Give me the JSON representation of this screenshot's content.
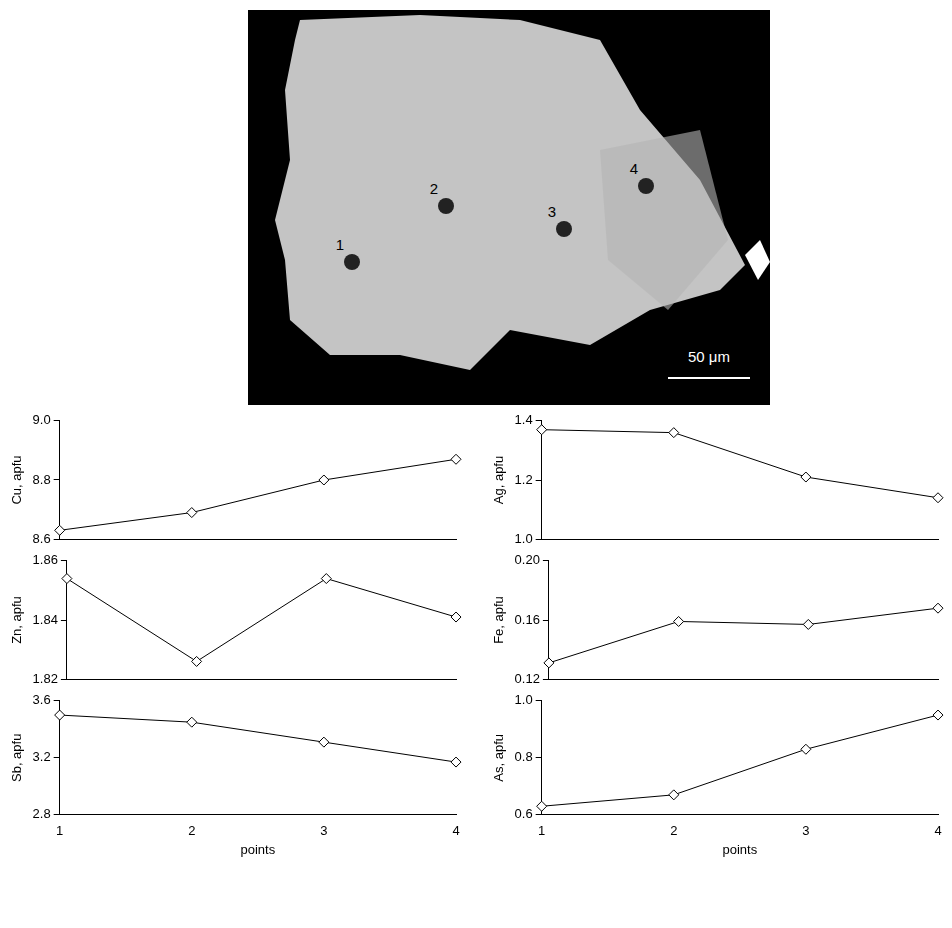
{
  "image": {
    "points": [
      "1",
      "2",
      "3",
      "4"
    ],
    "scale_bar": "50 μm"
  },
  "chart_data": [
    {
      "type": "line",
      "y_label": "Cu, apfu",
      "x": [
        1,
        2,
        3,
        4
      ],
      "values": [
        8.63,
        8.69,
        8.8,
        8.87
      ],
      "xlim": [
        1,
        4
      ],
      "xticks": [
        1,
        2,
        3,
        4
      ],
      "ylim": [
        8.6,
        9.0
      ],
      "yticks": [
        8.6,
        8.8,
        {
          "value": 9,
          "label": "9.0"
        }
      ],
      "color": "#000000",
      "marker": "diamond",
      "line_style": "solid",
      "grid": false,
      "tick_labels": "y"
    },
    {
      "type": "line",
      "y_label": "Ag, apfu",
      "x": [
        1,
        2,
        3,
        4
      ],
      "values": [
        1.37,
        1.36,
        1.21,
        1.14
      ],
      "xlim": [
        1,
        4
      ],
      "xticks": [
        1,
        2,
        3,
        4
      ],
      "ylim": [
        1.0,
        1.4
      ],
      "yticks": [
        {
          "value": 1,
          "label": "1.0"
        },
        1.2,
        1.4
      ],
      "color": "#000000",
      "marker": "diamond",
      "line_style": "solid",
      "grid": false,
      "tick_labels": "y"
    },
    {
      "type": "line",
      "y_label": "Zn, apfu",
      "x": [
        1,
        2,
        3,
        4
      ],
      "values": [
        1.854,
        1.826,
        1.854,
        1.841
      ],
      "xlim": [
        1,
        4
      ],
      "xticks": [
        1,
        2,
        3,
        4
      ],
      "ylim": [
        1.82,
        1.86
      ],
      "yticks": [
        1.82,
        1.84,
        1.86
      ],
      "color": "#000000",
      "marker": "diamond",
      "line_style": "solid",
      "grid": false,
      "tick_labels": "y"
    },
    {
      "type": "line",
      "y_label": "Fe, apfu",
      "x": [
        1,
        2,
        3,
        4
      ],
      "values": [
        0.131,
        0.159,
        0.157,
        0.168
      ],
      "xlim": [
        1,
        4
      ],
      "xticks": [
        1,
        2,
        3,
        4
      ],
      "ylim": [
        0.12,
        0.2
      ],
      "yticks": [
        0.12,
        0.16,
        {
          "value": 0.2,
          "label": "0.20"
        }
      ],
      "color": "#000000",
      "marker": "diamond",
      "line_style": "solid",
      "grid": false,
      "tick_labels": "y"
    },
    {
      "type": "line",
      "y_label": "Sb, apfu",
      "x_label": "points",
      "x": [
        1,
        2,
        3,
        4
      ],
      "values": [
        3.5,
        3.45,
        3.31,
        3.17
      ],
      "xlim": [
        1,
        4
      ],
      "xticks": [
        1,
        2,
        3,
        4
      ],
      "ylim": [
        2.8,
        3.6
      ],
      "yticks": [
        2.8,
        3.2,
        3.6
      ],
      "color": "#000000",
      "marker": "diamond",
      "line_style": "solid",
      "grid": false
    },
    {
      "type": "line",
      "y_label": "As, apfu",
      "x_label": "points",
      "x": [
        1,
        2,
        3,
        4
      ],
      "values": [
        0.63,
        0.67,
        0.83,
        0.95
      ],
      "xlim": [
        1,
        4
      ],
      "xticks": [
        1,
        2,
        3,
        4
      ],
      "ylim": [
        0.6,
        1.0
      ],
      "yticks": [
        0.6,
        0.8,
        {
          "value": 1,
          "label": "1.0"
        }
      ],
      "color": "#000000",
      "marker": "diamond",
      "line_style": "solid",
      "grid": false
    }
  ]
}
